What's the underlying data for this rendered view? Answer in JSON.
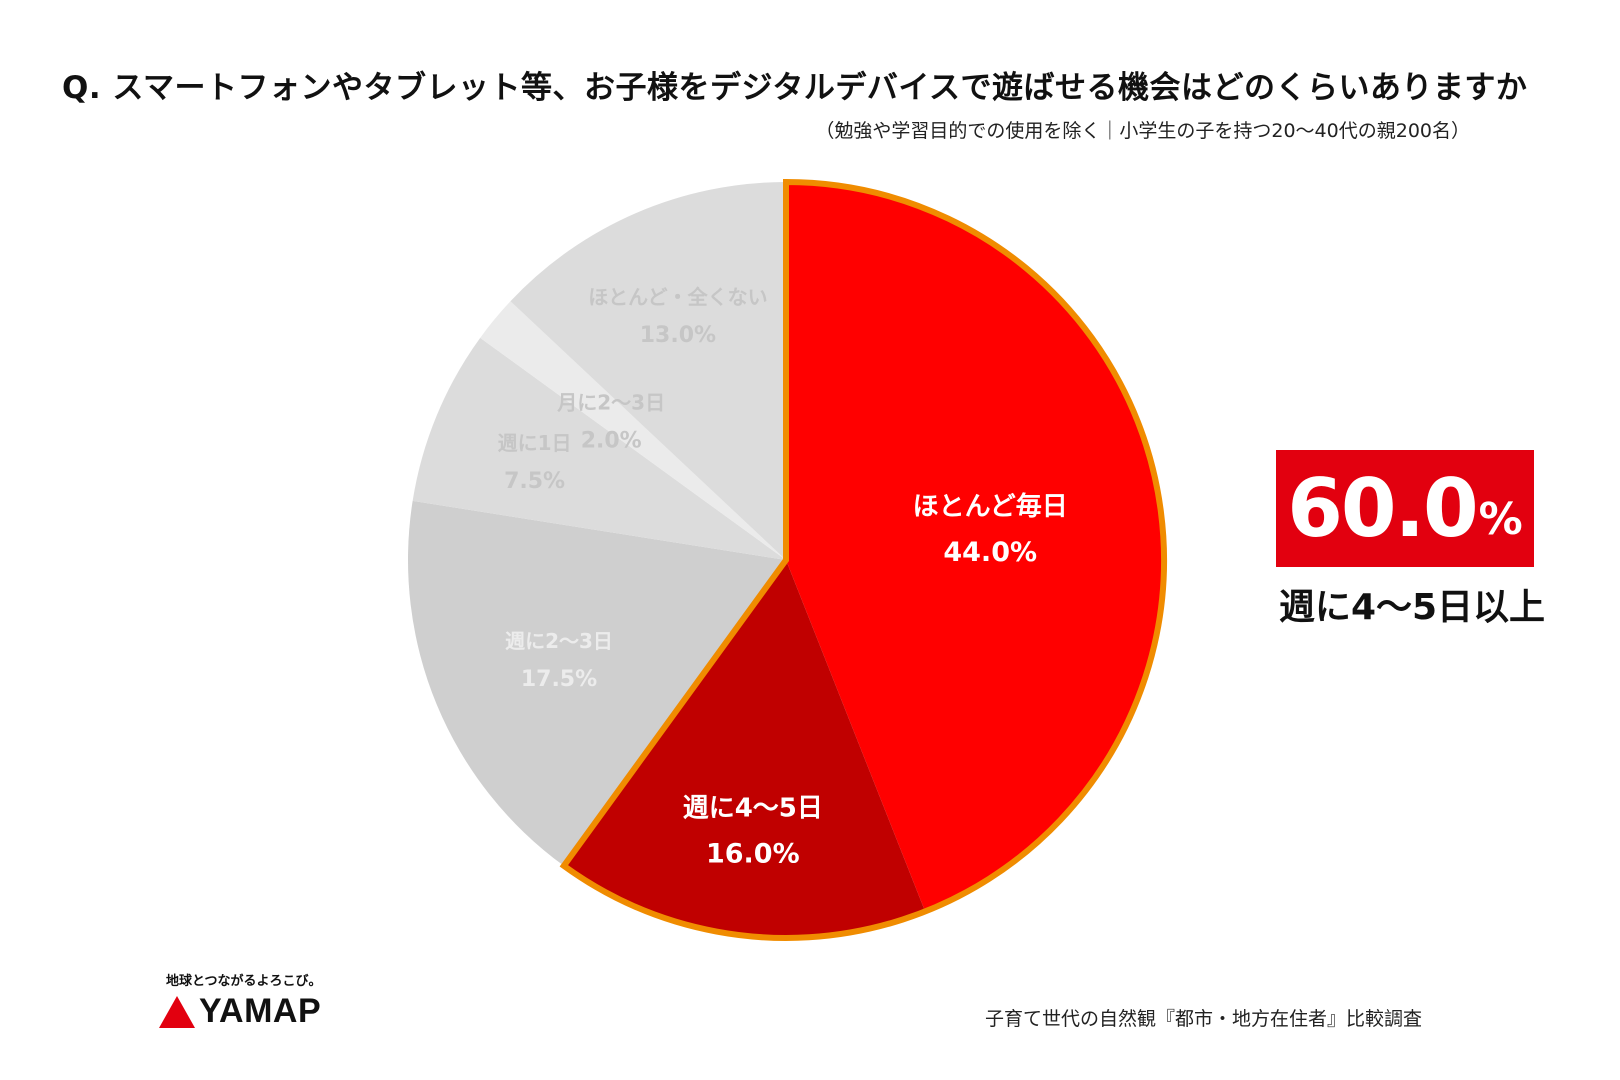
{
  "title": "Q. スマートフォンやタブレット等、お子様をデジタルデバイスで遊ばせる機会はどのくらいありますか",
  "subtitle": "（勉強や学習目的での使用を除く｜小学生の子を持つ20〜40代の親200名）",
  "chart_data": {
    "type": "pie",
    "title": "Q. スマートフォンやタブレット等、お子様をデジタルデバイスで遊ばせる機会はどのくらいありますか",
    "start_angle_deg": 0,
    "direction": "clockwise",
    "slices": [
      {
        "label": "ほとんど毎日",
        "value": 44.0,
        "value_label": "44.0%",
        "color": "#ff0000",
        "text_color": "#ffffff",
        "highlighted": true
      },
      {
        "label": "週に4〜5日",
        "value": 16.0,
        "value_label": "16.0%",
        "color": "#c00000",
        "text_color": "#ffffff",
        "highlighted": true
      },
      {
        "label": "週に2〜3日",
        "value": 17.5,
        "value_label": "17.5%",
        "color": "#cfcfcf",
        "text_color": "#ececec",
        "highlighted": false
      },
      {
        "label": "週に1日",
        "value": 7.5,
        "value_label": "7.5%",
        "color": "#dcdcdc",
        "text_color": "#c6c6c6",
        "highlighted": false
      },
      {
        "label": "月に2〜3日",
        "value": 2.0,
        "value_label": "2.0%",
        "color": "#ebebeb",
        "text_color": "#c6c6c6",
        "highlighted": false
      },
      {
        "label": "ほとんど・全くない",
        "value": 13.0,
        "value_label": "13.0%",
        "color": "#dcdcdc",
        "text_color": "#c6c6c6",
        "highlighted": false
      }
    ],
    "highlight_outline_color": "#f08c00"
  },
  "highlight": {
    "value": "60.0",
    "unit": "%",
    "caption": "週に4〜5日以上",
    "box_color": "#e2000f"
  },
  "footer": {
    "tagline": "地球とつながるよろこび。",
    "logo_text": "YAMAP",
    "logo_color": "#e2000f",
    "source": "子育て世代の自然観『都市・地方在住者』比較調査"
  }
}
